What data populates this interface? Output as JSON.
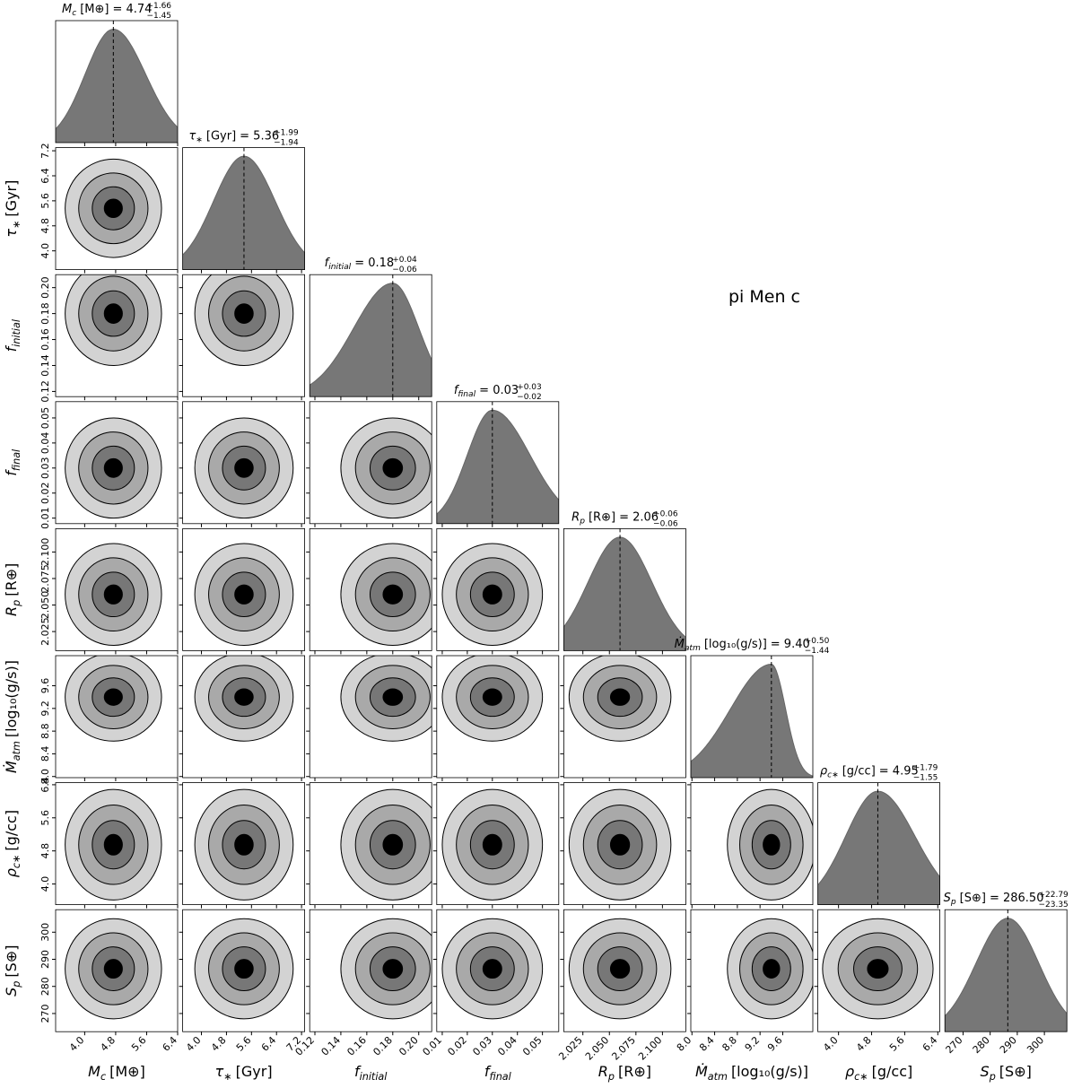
{
  "chart_data": {
    "type": "corner",
    "title": "pi Men c",
    "parameters": [
      {
        "symbol": "M",
        "subscript": "c",
        "unit": "[M⊕]",
        "median": 4.74,
        "median_label": "= 4.74",
        "errors": [
          1.66,
          1.45
        ],
        "error_labels": [
          "+1.66",
          "−1.45"
        ],
        "lim": [
          3.25,
          6.4
        ],
        "ticks": [
          {
            "value": 4.0,
            "label": "4.0"
          },
          4.8,
          5.6,
          6.4
        ]
      },
      {
        "symbol": "τ",
        "subscript": "∗",
        "unit": "[Gyr]",
        "median": 5.36,
        "median_label": "= 5.36",
        "errors": [
          1.99,
          1.94
        ],
        "error_labels": [
          "+1.99",
          "−1.94"
        ],
        "lim": [
          3.4,
          7.3
        ],
        "ticks": [
          {
            "value": 4.0,
            "label": "4.0"
          },
          4.8,
          5.6,
          6.4,
          7.2
        ]
      },
      {
        "symbol": "f",
        "subscript": "initial",
        "unit": "",
        "median": 0.18,
        "median_label": "= 0.18",
        "errors": [
          0.04,
          0.06
        ],
        "error_labels": [
          "+0.04",
          "−0.06"
        ],
        "lim": [
          0.116,
          0.21
        ],
        "ticks": [
          0.12,
          0.14,
          0.16,
          0.18,
          {
            "value": 0.2,
            "label": "0.20"
          }
        ]
      },
      {
        "symbol": "f",
        "subscript": "final",
        "unit": "",
        "median": 0.03,
        "median_label": "= 0.03",
        "errors": [
          0.03,
          0.02
        ],
        "error_labels": [
          "+0.03",
          "−0.02"
        ],
        "lim": [
          0.0078,
          0.0565
        ],
        "ticks": [
          0.01,
          0.02,
          0.03,
          0.04,
          0.05
        ]
      },
      {
        "symbol": "R",
        "subscript": "p",
        "unit": "[R⊕]",
        "median": 2.06,
        "median_label": "= 2.06",
        "errors": [
          0.06,
          0.06
        ],
        "error_labels": [
          "+0.06",
          "−0.06"
        ],
        "lim": [
          2.007,
          2.122
        ],
        "ticks": [
          2.025,
          {
            "value": 2.05,
            "label": "2.050"
          },
          2.075,
          {
            "value": 2.1,
            "label": "2.100"
          }
        ]
      },
      {
        "symbol": "Ṁ",
        "subscript": "atm",
        "unit": "[log₁₀(g/s)]",
        "median": 9.4,
        "median_label": "= 9.40",
        "errors": [
          0.5,
          1.44
        ],
        "error_labels": [
          "+0.50",
          "−1.44"
        ],
        "lim": [
          7.98,
          10.13
        ],
        "ticks": [
          {
            "value": 8.0,
            "label": "8.0"
          },
          8.4,
          8.8,
          9.2,
          9.6
        ]
      },
      {
        "symbol": "ρ",
        "subscript": "c∗",
        "unit": "[g/cc]",
        "median": 4.95,
        "median_label": "= 4.95",
        "errors": [
          1.79,
          1.55
        ],
        "error_labels": [
          "+1.79",
          "−1.55"
        ],
        "lim": [
          3.5,
          6.45
        ],
        "ticks": [
          {
            "value": 4.0,
            "label": "4.0"
          },
          4.8,
          5.6,
          6.4
        ]
      },
      {
        "symbol": "S",
        "subscript": "p",
        "unit": "[S⊕]",
        "median": 286.5,
        "median_label": "= 286.50",
        "errors": [
          22.79,
          23.35
        ],
        "error_labels": [
          "+22.79",
          "−23.35"
        ],
        "lim": [
          263.3,
          308.3
        ],
        "ticks": [
          270,
          280,
          290,
          300
        ]
      }
    ]
  }
}
